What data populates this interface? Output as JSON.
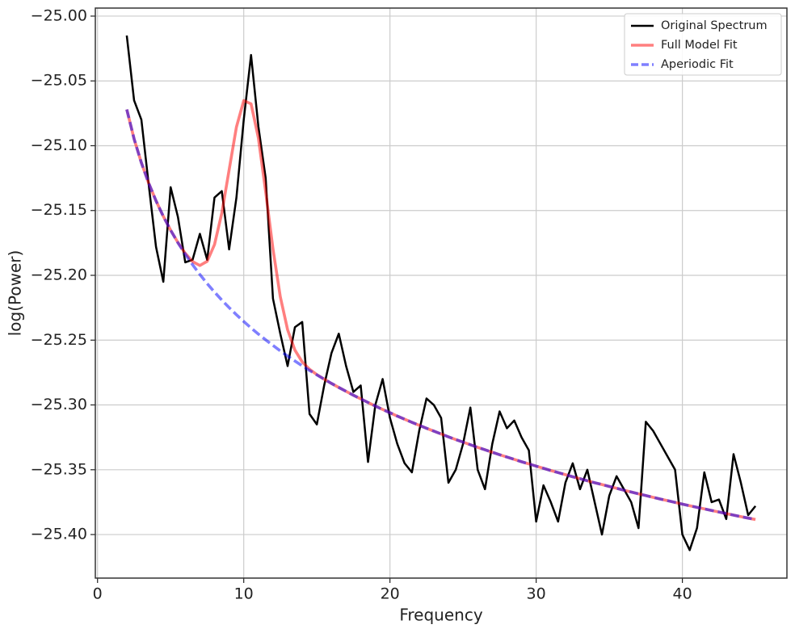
{
  "chart_data": {
    "type": "line",
    "xlabel": "Frequency",
    "ylabel": "log(Power)",
    "x": [
      2,
      2.5,
      3,
      3.5,
      4,
      4.5,
      5,
      5.5,
      6,
      6.5,
      7,
      7.5,
      8,
      8.5,
      9,
      9.5,
      10,
      10.5,
      11,
      11.5,
      12,
      12.5,
      13,
      13.5,
      14,
      14.5,
      15,
      15.5,
      16,
      16.5,
      17,
      17.5,
      18,
      18.5,
      19,
      19.5,
      20,
      20.5,
      21,
      21.5,
      22,
      22.5,
      23,
      23.5,
      24,
      24.5,
      25,
      25.5,
      26,
      26.5,
      27,
      27.5,
      28,
      28.5,
      29,
      29.5,
      30,
      30.5,
      31,
      31.5,
      32,
      32.5,
      33,
      33.5,
      34,
      34.5,
      35,
      35.5,
      36,
      36.5,
      37,
      37.5,
      38,
      38.5,
      39,
      39.5,
      40,
      40.5,
      41,
      41.5,
      42,
      42.5,
      43,
      43.5,
      44,
      44.5,
      45
    ],
    "series": [
      {
        "name": "Original Spectrum",
        "color": "#000000",
        "alpha": 1,
        "dashed": false,
        "values": [
          -25.015,
          -25.065,
          -25.08,
          -25.13,
          -25.178,
          -25.205,
          -25.132,
          -25.155,
          -25.19,
          -25.188,
          -25.168,
          -25.188,
          -25.14,
          -25.135,
          -25.18,
          -25.14,
          -25.08,
          -25.03,
          -25.085,
          -25.125,
          -25.218,
          -25.245,
          -25.27,
          -25.24,
          -25.236,
          -25.307,
          -25.315,
          -25.285,
          -25.26,
          -25.245,
          -25.27,
          -25.29,
          -25.285,
          -25.344,
          -25.3,
          -25.28,
          -25.31,
          -25.33,
          -25.345,
          -25.352,
          -25.32,
          -25.295,
          -25.3,
          -25.31,
          -25.36,
          -25.35,
          -25.33,
          -25.302,
          -25.35,
          -25.365,
          -25.33,
          -25.305,
          -25.318,
          -25.312,
          -25.325,
          -25.335,
          -25.39,
          -25.362,
          -25.375,
          -25.39,
          -25.36,
          -25.345,
          -25.365,
          -25.35,
          -25.375,
          -25.4,
          -25.37,
          -25.355,
          -25.365,
          -25.375,
          -25.395,
          -25.313,
          -25.32,
          -25.33,
          -25.34,
          -25.35,
          -25.4,
          -25.412,
          -25.395,
          -25.352,
          -25.375,
          -25.373,
          -25.388,
          -25.338,
          -25.36,
          -25.385,
          -25.378
        ]
      },
      {
        "name": "Full Model Fit",
        "color": "#ff0000",
        "alpha": 0.5,
        "dashed": false,
        "values": [
          -25.072,
          -25.0947,
          -25.1132,
          -25.1289,
          -25.1425,
          -25.1545,
          -25.1652,
          -25.1747,
          -25.183,
          -25.1894,
          -25.1924,
          -25.1892,
          -25.1763,
          -25.152,
          -25.1187,
          -25.0856,
          -25.0652,
          -25.0677,
          -25.0939,
          -25.1355,
          -25.1797,
          -25.2165,
          -25.242,
          -25.2577,
          -25.2668,
          -25.2725,
          -25.2766,
          -25.2801,
          -25.2834,
          -25.2865,
          -25.2895,
          -25.2925,
          -25.2953,
          -25.2981,
          -25.3008,
          -25.3035,
          -25.306,
          -25.3086,
          -25.311,
          -25.3134,
          -25.3157,
          -25.318,
          -25.3202,
          -25.3224,
          -25.3246,
          -25.3267,
          -25.3287,
          -25.3307,
          -25.3327,
          -25.3346,
          -25.3365,
          -25.3384,
          -25.3402,
          -25.342,
          -25.3438,
          -25.3455,
          -25.3472,
          -25.3489,
          -25.3506,
          -25.3522,
          -25.3538,
          -25.3554,
          -25.3569,
          -25.3585,
          -25.36,
          -25.3614,
          -25.3629,
          -25.3643,
          -25.3658,
          -25.3672,
          -25.3686,
          -25.3699,
          -25.3713,
          -25.3726,
          -25.3739,
          -25.3752,
          -25.3765,
          -25.3778,
          -25.379,
          -25.3802,
          -25.3814,
          -25.3826,
          -25.3838,
          -25.385,
          -25.3862,
          -25.3873,
          -25.3884
        ]
      },
      {
        "name": "Aperiodic Fit",
        "color": "#0000ff",
        "alpha": 0.5,
        "dashed": true,
        "values": [
          -25.072,
          -25.0947,
          -25.1132,
          -25.1289,
          -25.1425,
          -25.1545,
          -25.1652,
          -25.1749,
          -25.1837,
          -25.1918,
          -25.1994,
          -25.2064,
          -25.2129,
          -25.2191,
          -25.2249,
          -25.2304,
          -25.2356,
          -25.2406,
          -25.2453,
          -25.2498,
          -25.2541,
          -25.2583,
          -25.2623,
          -25.2661,
          -25.2698,
          -25.2734,
          -25.2768,
          -25.2801,
          -25.2834,
          -25.2865,
          -25.2895,
          -25.2925,
          -25.2953,
          -25.2981,
          -25.3008,
          -25.3035,
          -25.306,
          -25.3086,
          -25.311,
          -25.3134,
          -25.3157,
          -25.318,
          -25.3202,
          -25.3224,
          -25.3246,
          -25.3267,
          -25.3287,
          -25.3307,
          -25.3327,
          -25.3346,
          -25.3365,
          -25.3384,
          -25.3402,
          -25.342,
          -25.3438,
          -25.3455,
          -25.3472,
          -25.3489,
          -25.3506,
          -25.3522,
          -25.3538,
          -25.3554,
          -25.3569,
          -25.3585,
          -25.36,
          -25.3614,
          -25.3629,
          -25.3643,
          -25.3658,
          -25.3672,
          -25.3686,
          -25.3699,
          -25.3713,
          -25.3726,
          -25.3739,
          -25.3752,
          -25.3765,
          -25.3778,
          -25.379,
          -25.3802,
          -25.3814,
          -25.3826,
          -25.3838,
          -25.385,
          -25.3862,
          -25.3873,
          -25.3884
        ]
      }
    ],
    "xlim": [
      -0.15,
      47.15
    ],
    "ylim": [
      -25.4336,
      -24.9938
    ],
    "xticks": [
      0,
      10,
      20,
      30,
      40
    ],
    "yticks": [
      {
        "value": -25.4,
        "label": "−25.40"
      },
      {
        "value": -25.35,
        "label": "−25.35"
      },
      {
        "value": -25.3,
        "label": "−25.30"
      },
      {
        "value": -25.25,
        "label": "−25.25"
      },
      {
        "value": -25.2,
        "label": "−25.20"
      },
      {
        "value": -25.15,
        "label": "−25.15"
      },
      {
        "value": -25.1,
        "label": "−25.10"
      },
      {
        "value": -25.05,
        "label": "−25.05"
      },
      {
        "value": -25.0,
        "label": "−25.00"
      }
    ],
    "grid": true,
    "legend": "upper right"
  }
}
